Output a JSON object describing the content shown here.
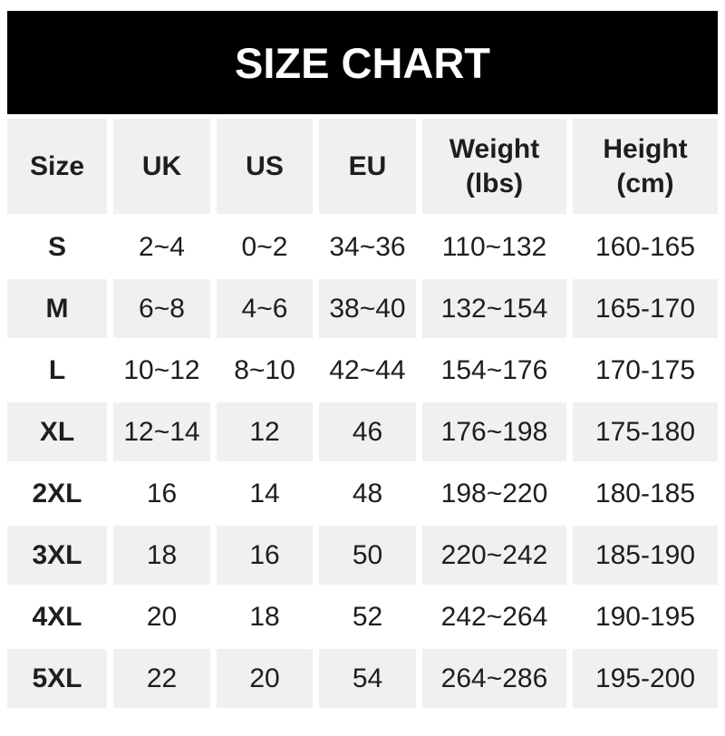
{
  "banner": {
    "title": "SIZE CHART"
  },
  "chart_data": {
    "type": "table",
    "title": "SIZE CHART",
    "columns": [
      "Size",
      "UK",
      "US",
      "EU",
      "Weight (lbs)",
      "Height (cm)"
    ],
    "rows": [
      [
        "S",
        "2~4",
        "0~2",
        "34~36",
        "110~132",
        "160-165"
      ],
      [
        "M",
        "6~8",
        "4~6",
        "38~40",
        "132~154",
        "165-170"
      ],
      [
        "L",
        "10~12",
        "8~10",
        "42~44",
        "154~176",
        "170-175"
      ],
      [
        "XL",
        "12~14",
        "12",
        "46",
        "176~198",
        "175-180"
      ],
      [
        "2XL",
        "16",
        "14",
        "48",
        "198~220",
        "180-185"
      ],
      [
        "3XL",
        "18",
        "16",
        "50",
        "220~242",
        "185-190"
      ],
      [
        "4XL",
        "20",
        "18",
        "52",
        "242~264",
        "190-195"
      ],
      [
        "5XL",
        "22",
        "20",
        "54",
        "264~286",
        "195-200"
      ]
    ],
    "layout": {
      "striped": true,
      "stripe_pattern": "even rows gray, odd rows white",
      "header_two_line_columns": [
        "Weight (lbs)",
        "Height (cm)"
      ]
    }
  },
  "header_lines": {
    "size": [
      "Size",
      ""
    ],
    "uk": [
      "UK",
      ""
    ],
    "us": [
      "US",
      ""
    ],
    "eu": [
      "EU",
      ""
    ],
    "weight": [
      "Weight",
      "(lbs)"
    ],
    "height": [
      "Height",
      "(cm)"
    ]
  },
  "colors": {
    "banner_bg": "#000000",
    "banner_text": "#ffffff",
    "stripe_gray": "#f0f0f0",
    "cell_text": "#1e1e1e",
    "page_bg": "#ffffff"
  }
}
